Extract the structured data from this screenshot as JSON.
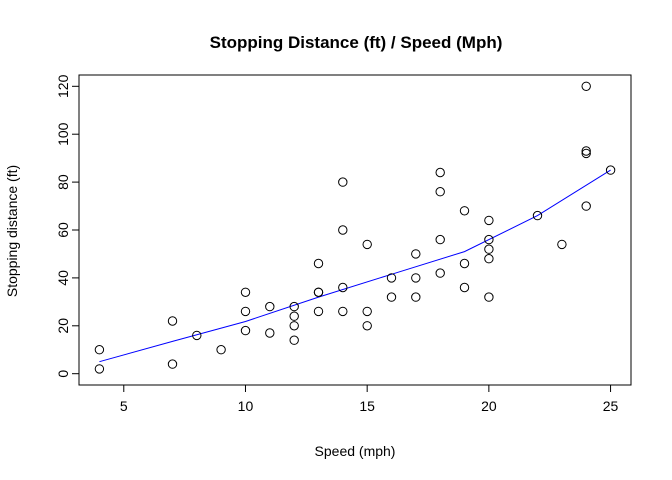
{
  "chart_data": {
    "type": "scatter",
    "title": "Stopping Distance (ft) / Speed (Mph)",
    "xlabel": "Speed (mph)",
    "ylabel": "Stopping distance (ft)",
    "xlim": [
      3.16,
      25.84
    ],
    "ylim": [
      -4.72,
      124.72
    ],
    "xticks": [
      5,
      10,
      15,
      20,
      25
    ],
    "yticks": [
      0,
      20,
      40,
      60,
      80,
      100,
      120
    ],
    "grid": false,
    "legend": "none",
    "point_color": "#000000",
    "line_color": "#0000ff",
    "points": {
      "x": [
        4,
        4,
        7,
        7,
        8,
        9,
        10,
        10,
        10,
        11,
        11,
        12,
        12,
        12,
        12,
        13,
        13,
        13,
        13,
        14,
        14,
        14,
        14,
        15,
        15,
        15,
        16,
        16,
        17,
        17,
        17,
        18,
        18,
        18,
        18,
        19,
        19,
        19,
        20,
        20,
        20,
        20,
        20,
        22,
        23,
        24,
        24,
        24,
        24,
        25
      ],
      "y": [
        2,
        10,
        4,
        22,
        16,
        10,
        18,
        26,
        34,
        17,
        28,
        14,
        20,
        24,
        28,
        26,
        34,
        34,
        46,
        26,
        36,
        60,
        80,
        20,
        26,
        54,
        32,
        40,
        32,
        40,
        50,
        42,
        56,
        76,
        84,
        36,
        46,
        68,
        32,
        48,
        52,
        56,
        64,
        66,
        54,
        70,
        92,
        93,
        120,
        85
      ]
    },
    "trend": {
      "x": [
        4,
        7,
        10,
        13,
        16,
        19,
        22,
        25
      ],
      "y": [
        5,
        13.5,
        21.8,
        32,
        41.5,
        51,
        66,
        85
      ]
    }
  }
}
